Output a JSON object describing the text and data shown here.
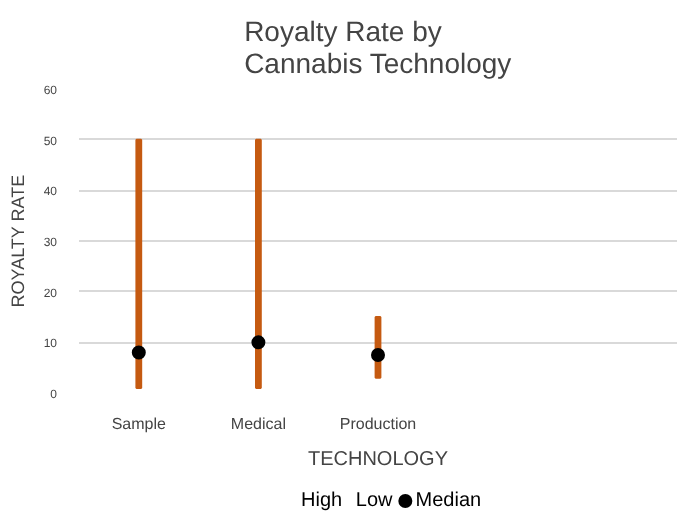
{
  "chart_data": {
    "type": "bar",
    "title": "Royalty Rate by Cannabis Technology",
    "xlabel": "TECHNOLOGY",
    "ylabel": "ROYALTY RATE",
    "categories": [
      "Sample",
      "Medical",
      "Production",
      null,
      null
    ],
    "series": [
      {
        "color": "#c55a11",
        "base": [
          1,
          1,
          3,
          null,
          null
        ],
        "values": [
          49,
          49,
          12,
          null,
          null
        ]
      },
      {
        "type": "scatter",
        "name": "Median",
        "color": "#000000",
        "marker": "circle",
        "values": [
          8,
          10,
          7.5,
          null,
          null
        ]
      }
    ],
    "annotations": [
      "High",
      "Low"
    ],
    "ylim": [
      0,
      60
    ],
    "yticks": [
      0,
      10,
      20,
      30,
      40,
      50,
      60
    ],
    "grid": "y",
    "legend": "bottom"
  }
}
